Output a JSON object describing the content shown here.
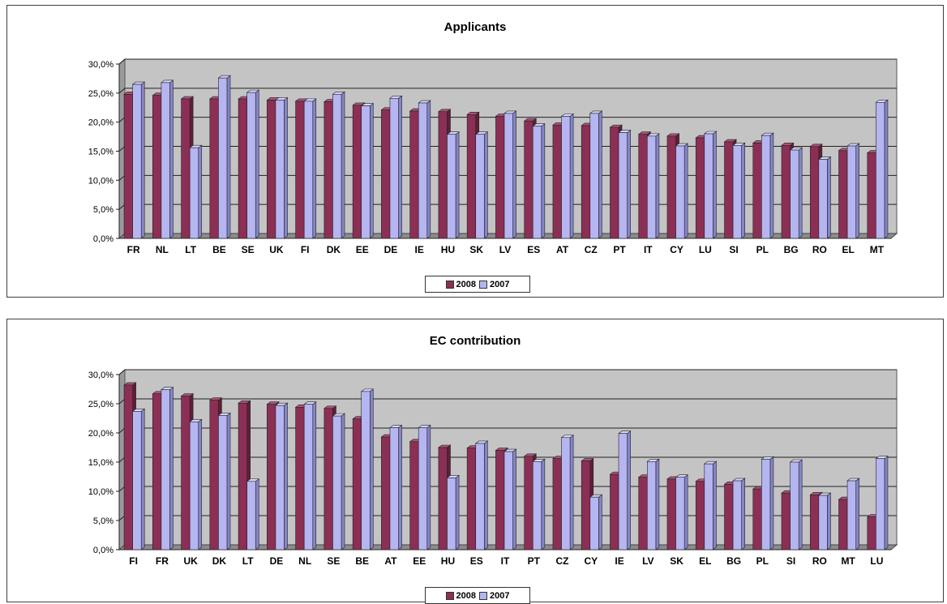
{
  "colors": {
    "series_2008": "#8B2F55",
    "series_2007": "#B5B5F2",
    "plot_bg": "#C4C4C4"
  },
  "chart_data": [
    {
      "type": "bar",
      "title": "Applicants",
      "ylim": [
        0,
        30
      ],
      "y_ticks": [
        "0,0%",
        "5,0%",
        "10,0%",
        "15,0%",
        "20,0%",
        "25,0%",
        "30,0%"
      ],
      "grid": true,
      "legend": "bottom",
      "categories": [
        "FR",
        "NL",
        "LT",
        "BE",
        "SE",
        "UK",
        "FI",
        "DK",
        "EE",
        "DE",
        "IE",
        "HU",
        "SK",
        "LV",
        "ES",
        "AT",
        "CZ",
        "PT",
        "IT",
        "CY",
        "LU",
        "SI",
        "PL",
        "BG",
        "RO",
        "EL",
        "MT"
      ],
      "series": [
        {
          "name": "2008",
          "values": [
            24.8,
            24.6,
            24.0,
            24.0,
            24.0,
            23.8,
            23.6,
            23.5,
            22.9,
            22.1,
            21.9,
            21.8,
            21.3,
            21.0,
            20.2,
            19.5,
            19.4,
            19.1,
            17.9,
            17.6,
            17.3,
            16.6,
            16.4,
            16.0,
            15.8,
            15.1,
            14.7
          ]
        },
        {
          "name": "2007",
          "values": [
            26.5,
            26.8,
            15.6,
            27.6,
            25.1,
            23.8,
            23.6,
            24.8,
            22.8,
            24.1,
            23.3,
            17.9,
            17.9,
            21.5,
            19.3,
            21.0,
            21.5,
            18.2,
            17.6,
            15.9,
            18.0,
            16.0,
            17.7,
            15.2,
            13.6,
            15.9,
            23.4
          ]
        }
      ]
    },
    {
      "type": "bar",
      "title": "EC contribution",
      "ylim": [
        0,
        30
      ],
      "y_ticks": [
        "0,0%",
        "5,0%",
        "10,0%",
        "15,0%",
        "20,0%",
        "25,0%",
        "30,0%"
      ],
      "grid": true,
      "legend": "bottom",
      "categories": [
        "FI",
        "FR",
        "UK",
        "DK",
        "LT",
        "DE",
        "NL",
        "SE",
        "BE",
        "AT",
        "EE",
        "HU",
        "ES",
        "IT",
        "PT",
        "CZ",
        "CY",
        "IE",
        "LV",
        "SK",
        "EL",
        "BG",
        "PL",
        "SI",
        "RO",
        "MT",
        "LU"
      ],
      "series": [
        {
          "name": "2008",
          "values": [
            28.2,
            26.7,
            26.3,
            25.6,
            25.1,
            24.9,
            24.4,
            24.2,
            22.4,
            19.3,
            18.5,
            17.5,
            17.4,
            17.0,
            16.0,
            15.6,
            15.2,
            12.9,
            12.4,
            12.1,
            11.7,
            11.2,
            10.4,
            9.7,
            9.4,
            8.6,
            5.6
          ]
        },
        {
          "name": "2007",
          "values": [
            23.7,
            27.4,
            21.9,
            23.0,
            11.7,
            24.7,
            24.9,
            22.9,
            27.1,
            20.9,
            20.9,
            12.3,
            18.2,
            16.8,
            15.1,
            19.2,
            9.0,
            19.9,
            15.1,
            12.4,
            14.7,
            11.8,
            15.5,
            15.0,
            9.3,
            11.8,
            15.6
          ]
        }
      ]
    }
  ]
}
